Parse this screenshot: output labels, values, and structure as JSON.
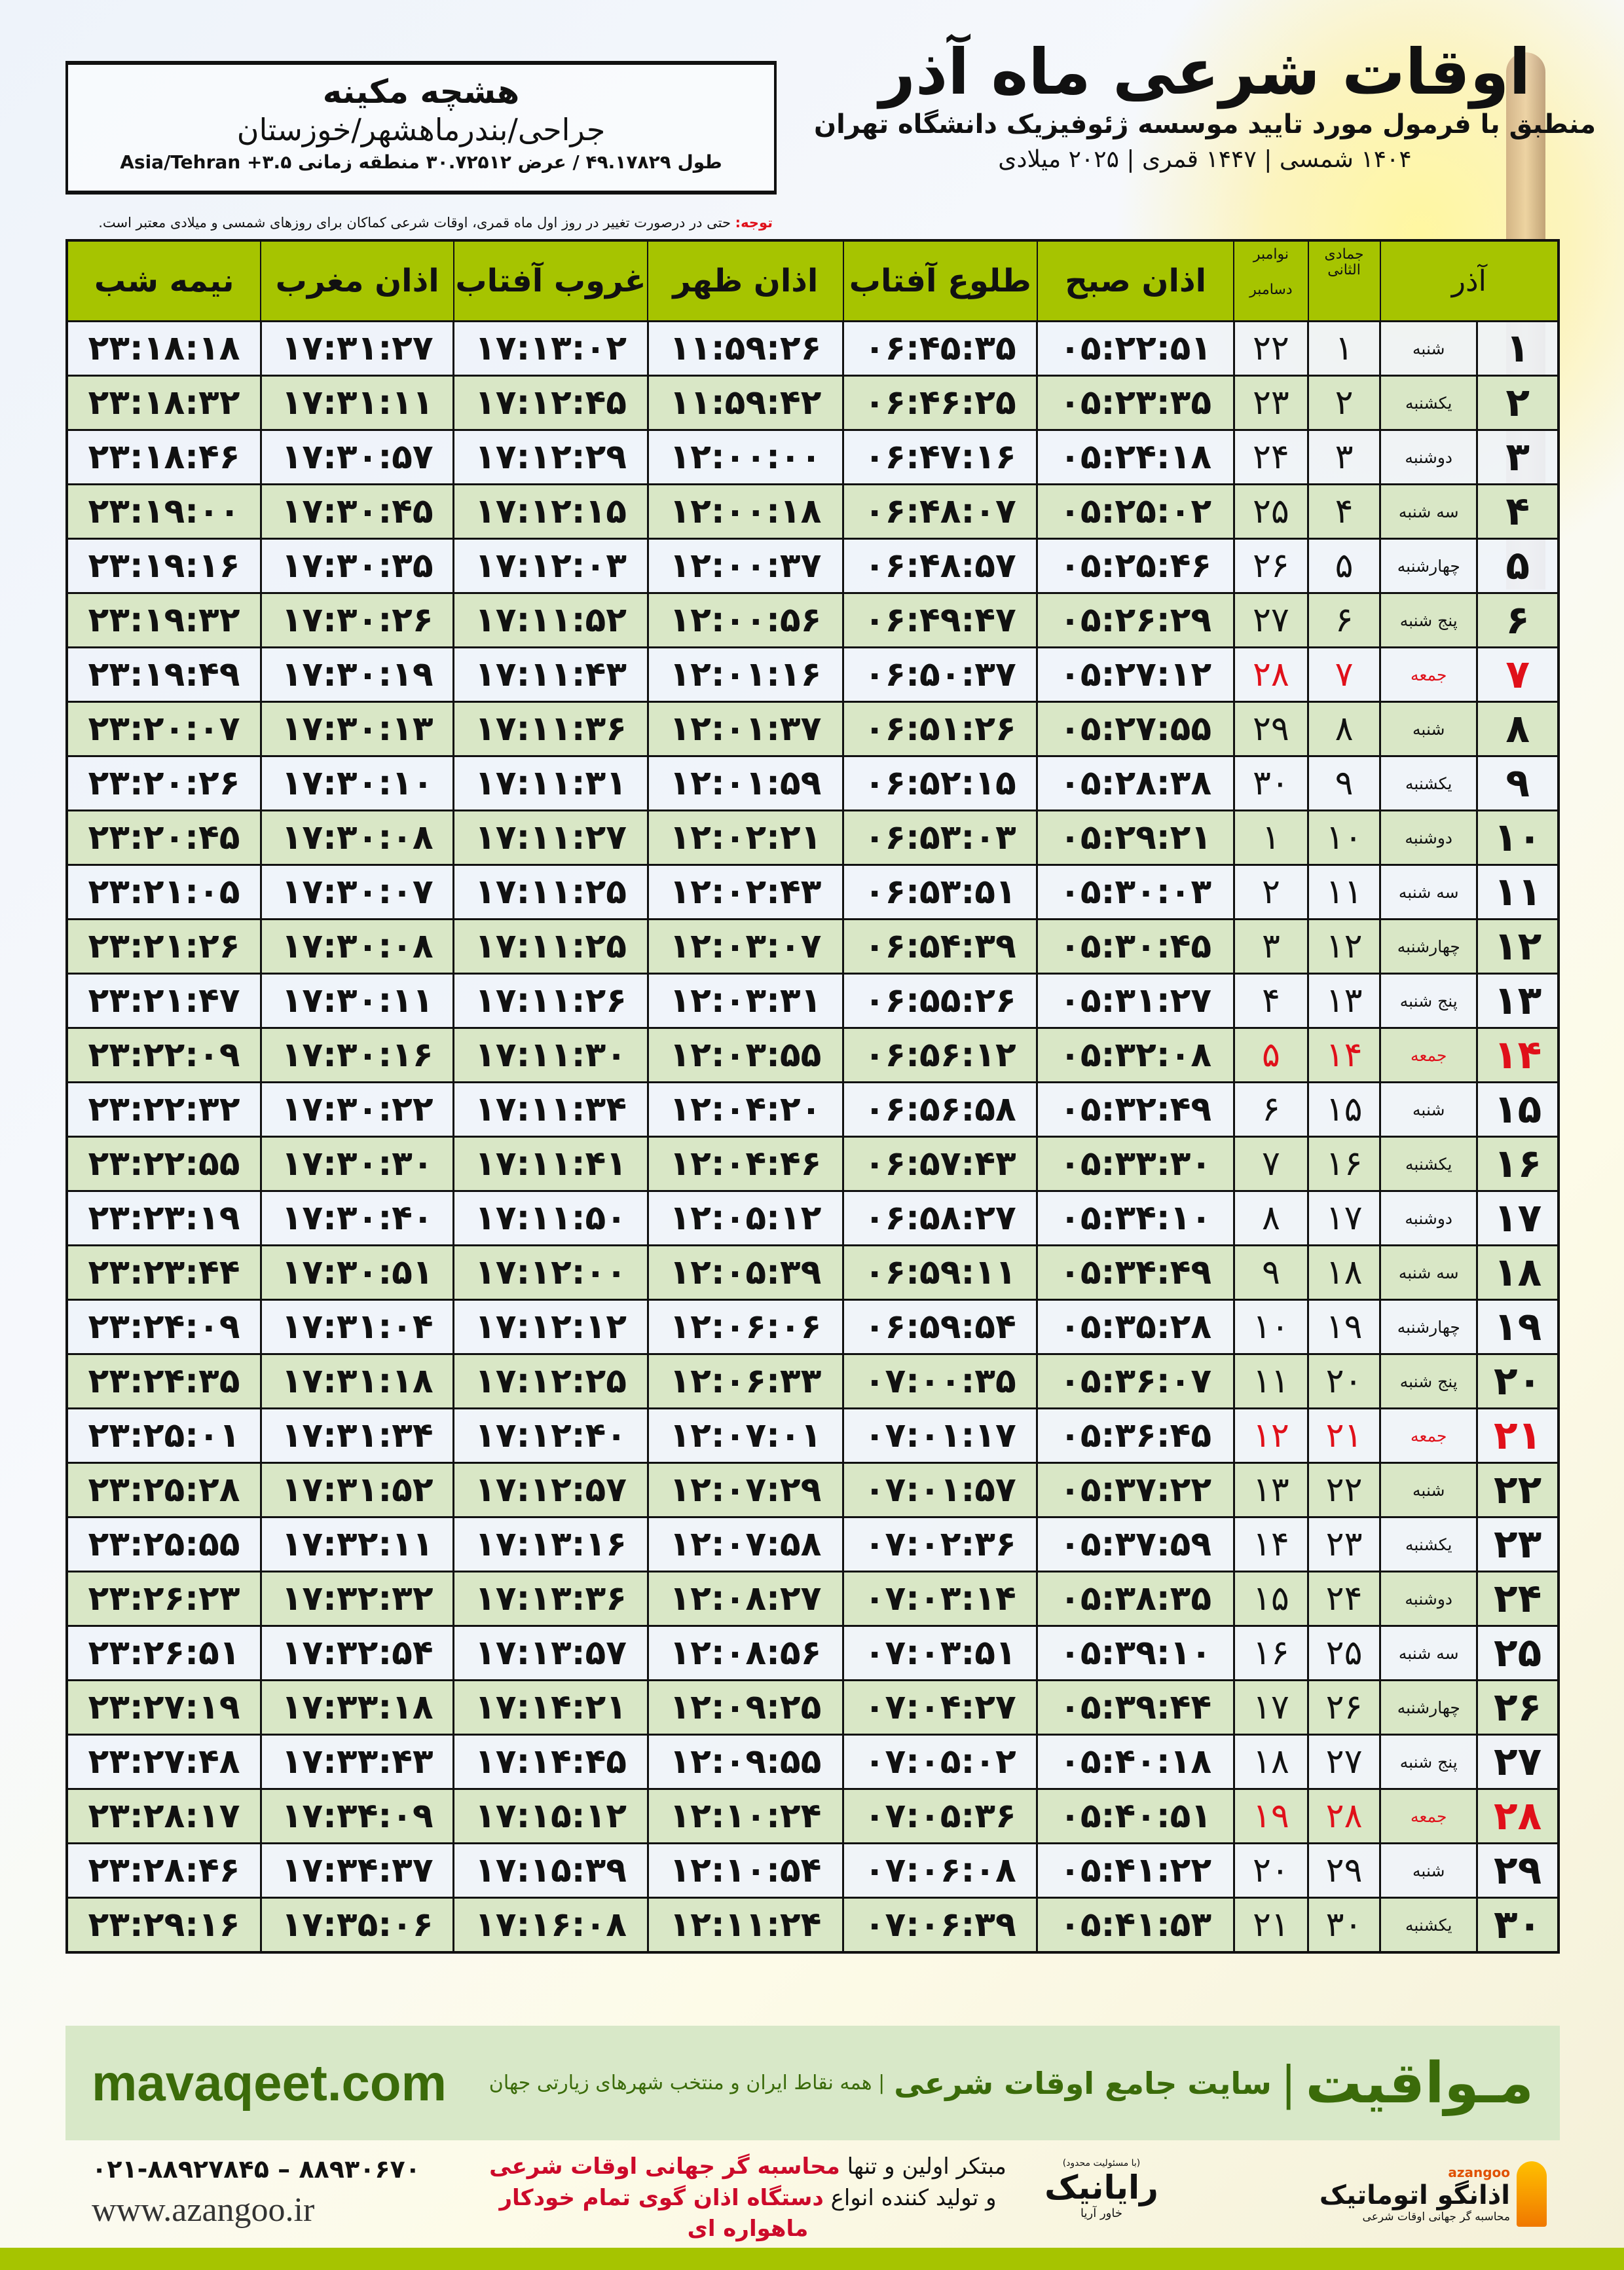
{
  "location": {
    "name": "هشچه مکینه",
    "place": "جراحی/بندرماهشهر/خوزستان",
    "coords": "طول ۴۹.۱۷۸۲۹ / عرض ۳۰.۷۲۵۱۲ منطقه زمانی ۳.۵+ Asia/Tehran"
  },
  "header": {
    "title": "اوقات شرعی ماه آذر",
    "subtitle": "منطبق با فرمول مورد تایید موسسه ژئوفیزیک دانشگاه تهران",
    "years": "۱۴۰۴ شمسی | ۱۴۴۷ قمری | ۲۰۲۵ میلادی"
  },
  "note": {
    "label": "توجه:",
    "text": " حتی در درصورت تغییر در روز اول ماه قمری، اوقات شرعی کماکان برای روزهای شمسی و میلادی معتبر است."
  },
  "colors": {
    "header_green": "#a6c400",
    "even_row": "#d9e7c6",
    "friday_red": "#e0101a",
    "brand_green": "#3b6b0a"
  },
  "table": {
    "columns": {
      "day": "آذر",
      "hijri": "جمادی الثانی",
      "greg_top": "نوامبر",
      "greg_bottom": "دسامبر",
      "fajr": "اذان صبح",
      "sunrise": "طلوع آفتاب",
      "dhuhr": "اذان ظهر",
      "sunset": "غروب آفتاب",
      "maghrib": "اذان مغرب",
      "midnight": "نیمه شب"
    },
    "rows": [
      {
        "day": "۱",
        "weekday": "شنبه",
        "hijri": "۱",
        "greg": "۲۲",
        "fajr": "۰۵:۲۲:۵۱",
        "sunrise": "۰۶:۴۵:۳۵",
        "dhuhr": "۱۱:۵۹:۲۶",
        "sunset": "۱۷:۱۳:۰۲",
        "maghrib": "۱۷:۳۱:۲۷",
        "midnight": "۲۳:۱۸:۱۸",
        "friday": false
      },
      {
        "day": "۲",
        "weekday": "یکشنبه",
        "hijri": "۲",
        "greg": "۲۳",
        "fajr": "۰۵:۲۳:۳۵",
        "sunrise": "۰۶:۴۶:۲۵",
        "dhuhr": "۱۱:۵۹:۴۲",
        "sunset": "۱۷:۱۲:۴۵",
        "maghrib": "۱۷:۳۱:۱۱",
        "midnight": "۲۳:۱۸:۳۲",
        "friday": false
      },
      {
        "day": "۳",
        "weekday": "دوشنبه",
        "hijri": "۳",
        "greg": "۲۴",
        "fajr": "۰۵:۲۴:۱۸",
        "sunrise": "۰۶:۴۷:۱۶",
        "dhuhr": "۱۲:۰۰:۰۰",
        "sunset": "۱۷:۱۲:۲۹",
        "maghrib": "۱۷:۳۰:۵۷",
        "midnight": "۲۳:۱۸:۴۶",
        "friday": false
      },
      {
        "day": "۴",
        "weekday": "سه شنبه",
        "hijri": "۴",
        "greg": "۲۵",
        "fajr": "۰۵:۲۵:۰۲",
        "sunrise": "۰۶:۴۸:۰۷",
        "dhuhr": "۱۲:۰۰:۱۸",
        "sunset": "۱۷:۱۲:۱۵",
        "maghrib": "۱۷:۳۰:۴۵",
        "midnight": "۲۳:۱۹:۰۰",
        "friday": false
      },
      {
        "day": "۵",
        "weekday": "چهارشنبه",
        "hijri": "۵",
        "greg": "۲۶",
        "fajr": "۰۵:۲۵:۴۶",
        "sunrise": "۰۶:۴۸:۵۷",
        "dhuhr": "۱۲:۰۰:۳۷",
        "sunset": "۱۷:۱۲:۰۳",
        "maghrib": "۱۷:۳۰:۳۵",
        "midnight": "۲۳:۱۹:۱۶",
        "friday": false
      },
      {
        "day": "۶",
        "weekday": "پنج شنبه",
        "hijri": "۶",
        "greg": "۲۷",
        "fajr": "۰۵:۲۶:۲۹",
        "sunrise": "۰۶:۴۹:۴۷",
        "dhuhr": "۱۲:۰۰:۵۶",
        "sunset": "۱۷:۱۱:۵۲",
        "maghrib": "۱۷:۳۰:۲۶",
        "midnight": "۲۳:۱۹:۳۲",
        "friday": false
      },
      {
        "day": "۷",
        "weekday": "جمعه",
        "hijri": "۷",
        "greg": "۲۸",
        "fajr": "۰۵:۲۷:۱۲",
        "sunrise": "۰۶:۵۰:۳۷",
        "dhuhr": "۱۲:۰۱:۱۶",
        "sunset": "۱۷:۱۱:۴۳",
        "maghrib": "۱۷:۳۰:۱۹",
        "midnight": "۲۳:۱۹:۴۹",
        "friday": true
      },
      {
        "day": "۸",
        "weekday": "شنبه",
        "hijri": "۸",
        "greg": "۲۹",
        "fajr": "۰۵:۲۷:۵۵",
        "sunrise": "۰۶:۵۱:۲۶",
        "dhuhr": "۱۲:۰۱:۳۷",
        "sunset": "۱۷:۱۱:۳۶",
        "maghrib": "۱۷:۳۰:۱۳",
        "midnight": "۲۳:۲۰:۰۷",
        "friday": false
      },
      {
        "day": "۹",
        "weekday": "یکشنبه",
        "hijri": "۹",
        "greg": "۳۰",
        "fajr": "۰۵:۲۸:۳۸",
        "sunrise": "۰۶:۵۲:۱۵",
        "dhuhr": "۱۲:۰۱:۵۹",
        "sunset": "۱۷:۱۱:۳۱",
        "maghrib": "۱۷:۳۰:۱۰",
        "midnight": "۲۳:۲۰:۲۶",
        "friday": false
      },
      {
        "day": "۱۰",
        "weekday": "دوشنبه",
        "hijri": "۱۰",
        "greg": "۱",
        "fajr": "۰۵:۲۹:۲۱",
        "sunrise": "۰۶:۵۳:۰۳",
        "dhuhr": "۱۲:۰۲:۲۱",
        "sunset": "۱۷:۱۱:۲۷",
        "maghrib": "۱۷:۳۰:۰۸",
        "midnight": "۲۳:۲۰:۴۵",
        "friday": false
      },
      {
        "day": "۱۱",
        "weekday": "سه شنبه",
        "hijri": "۱۱",
        "greg": "۲",
        "fajr": "۰۵:۳۰:۰۳",
        "sunrise": "۰۶:۵۳:۵۱",
        "dhuhr": "۱۲:۰۲:۴۳",
        "sunset": "۱۷:۱۱:۲۵",
        "maghrib": "۱۷:۳۰:۰۷",
        "midnight": "۲۳:۲۱:۰۵",
        "friday": false
      },
      {
        "day": "۱۲",
        "weekday": "چهارشنبه",
        "hijri": "۱۲",
        "greg": "۳",
        "fajr": "۰۵:۳۰:۴۵",
        "sunrise": "۰۶:۵۴:۳۹",
        "dhuhr": "۱۲:۰۳:۰۷",
        "sunset": "۱۷:۱۱:۲۵",
        "maghrib": "۱۷:۳۰:۰۸",
        "midnight": "۲۳:۲۱:۲۶",
        "friday": false
      },
      {
        "day": "۱۳",
        "weekday": "پنج شنبه",
        "hijri": "۱۳",
        "greg": "۴",
        "fajr": "۰۵:۳۱:۲۷",
        "sunrise": "۰۶:۵۵:۲۶",
        "dhuhr": "۱۲:۰۳:۳۱",
        "sunset": "۱۷:۱۱:۲۶",
        "maghrib": "۱۷:۳۰:۱۱",
        "midnight": "۲۳:۲۱:۴۷",
        "friday": false
      },
      {
        "day": "۱۴",
        "weekday": "جمعه",
        "hijri": "۱۴",
        "greg": "۵",
        "fajr": "۰۵:۳۲:۰۸",
        "sunrise": "۰۶:۵۶:۱۲",
        "dhuhr": "۱۲:۰۳:۵۵",
        "sunset": "۱۷:۱۱:۳۰",
        "maghrib": "۱۷:۳۰:۱۶",
        "midnight": "۲۳:۲۲:۰۹",
        "friday": true
      },
      {
        "day": "۱۵",
        "weekday": "شنبه",
        "hijri": "۱۵",
        "greg": "۶",
        "fajr": "۰۵:۳۲:۴۹",
        "sunrise": "۰۶:۵۶:۵۸",
        "dhuhr": "۱۲:۰۴:۲۰",
        "sunset": "۱۷:۱۱:۳۴",
        "maghrib": "۱۷:۳۰:۲۲",
        "midnight": "۲۳:۲۲:۳۲",
        "friday": false
      },
      {
        "day": "۱۶",
        "weekday": "یکشنبه",
        "hijri": "۱۶",
        "greg": "۷",
        "fajr": "۰۵:۳۳:۳۰",
        "sunrise": "۰۶:۵۷:۴۳",
        "dhuhr": "۱۲:۰۴:۴۶",
        "sunset": "۱۷:۱۱:۴۱",
        "maghrib": "۱۷:۳۰:۳۰",
        "midnight": "۲۳:۲۲:۵۵",
        "friday": false
      },
      {
        "day": "۱۷",
        "weekday": "دوشنبه",
        "hijri": "۱۷",
        "greg": "۸",
        "fajr": "۰۵:۳۴:۱۰",
        "sunrise": "۰۶:۵۸:۲۷",
        "dhuhr": "۱۲:۰۵:۱۲",
        "sunset": "۱۷:۱۱:۵۰",
        "maghrib": "۱۷:۳۰:۴۰",
        "midnight": "۲۳:۲۳:۱۹",
        "friday": false
      },
      {
        "day": "۱۸",
        "weekday": "سه شنبه",
        "hijri": "۱۸",
        "greg": "۹",
        "fajr": "۰۵:۳۴:۴۹",
        "sunrise": "۰۶:۵۹:۱۱",
        "dhuhr": "۱۲:۰۵:۳۹",
        "sunset": "۱۷:۱۲:۰۰",
        "maghrib": "۱۷:۳۰:۵۱",
        "midnight": "۲۳:۲۳:۴۴",
        "friday": false
      },
      {
        "day": "۱۹",
        "weekday": "چهارشنبه",
        "hijri": "۱۹",
        "greg": "۱۰",
        "fajr": "۰۵:۳۵:۲۸",
        "sunrise": "۰۶:۵۹:۵۴",
        "dhuhr": "۱۲:۰۶:۰۶",
        "sunset": "۱۷:۱۲:۱۲",
        "maghrib": "۱۷:۳۱:۰۴",
        "midnight": "۲۳:۲۴:۰۹",
        "friday": false
      },
      {
        "day": "۲۰",
        "weekday": "پنج شنبه",
        "hijri": "۲۰",
        "greg": "۱۱",
        "fajr": "۰۵:۳۶:۰۷",
        "sunrise": "۰۷:۰۰:۳۵",
        "dhuhr": "۱۲:۰۶:۳۳",
        "sunset": "۱۷:۱۲:۲۵",
        "maghrib": "۱۷:۳۱:۱۸",
        "midnight": "۲۳:۲۴:۳۵",
        "friday": false
      },
      {
        "day": "۲۱",
        "weekday": "جمعه",
        "hijri": "۲۱",
        "greg": "۱۲",
        "fajr": "۰۵:۳۶:۴۵",
        "sunrise": "۰۷:۰۱:۱۷",
        "dhuhr": "۱۲:۰۷:۰۱",
        "sunset": "۱۷:۱۲:۴۰",
        "maghrib": "۱۷:۳۱:۳۴",
        "midnight": "۲۳:۲۵:۰۱",
        "friday": true
      },
      {
        "day": "۲۲",
        "weekday": "شنبه",
        "hijri": "۲۲",
        "greg": "۱۳",
        "fajr": "۰۵:۳۷:۲۲",
        "sunrise": "۰۷:۰۱:۵۷",
        "dhuhr": "۱۲:۰۷:۲۹",
        "sunset": "۱۷:۱۲:۵۷",
        "maghrib": "۱۷:۳۱:۵۲",
        "midnight": "۲۳:۲۵:۲۸",
        "friday": false
      },
      {
        "day": "۲۳",
        "weekday": "یکشنبه",
        "hijri": "۲۳",
        "greg": "۱۴",
        "fajr": "۰۵:۳۷:۵۹",
        "sunrise": "۰۷:۰۲:۳۶",
        "dhuhr": "۱۲:۰۷:۵۸",
        "sunset": "۱۷:۱۳:۱۶",
        "maghrib": "۱۷:۳۲:۱۱",
        "midnight": "۲۳:۲۵:۵۵",
        "friday": false
      },
      {
        "day": "۲۴",
        "weekday": "دوشنبه",
        "hijri": "۲۴",
        "greg": "۱۵",
        "fajr": "۰۵:۳۸:۳۵",
        "sunrise": "۰۷:۰۳:۱۴",
        "dhuhr": "۱۲:۰۸:۲۷",
        "sunset": "۱۷:۱۳:۳۶",
        "maghrib": "۱۷:۳۲:۳۲",
        "midnight": "۲۳:۲۶:۲۳",
        "friday": false
      },
      {
        "day": "۲۵",
        "weekday": "سه شنبه",
        "hijri": "۲۵",
        "greg": "۱۶",
        "fajr": "۰۵:۳۹:۱۰",
        "sunrise": "۰۷:۰۳:۵۱",
        "dhuhr": "۱۲:۰۸:۵۶",
        "sunset": "۱۷:۱۳:۵۷",
        "maghrib": "۱۷:۳۲:۵۴",
        "midnight": "۲۳:۲۶:۵۱",
        "friday": false
      },
      {
        "day": "۲۶",
        "weekday": "چهارشنبه",
        "hijri": "۲۶",
        "greg": "۱۷",
        "fajr": "۰۵:۳۹:۴۴",
        "sunrise": "۰۷:۰۴:۲۷",
        "dhuhr": "۱۲:۰۹:۲۵",
        "sunset": "۱۷:۱۴:۲۱",
        "maghrib": "۱۷:۳۳:۱۸",
        "midnight": "۲۳:۲۷:۱۹",
        "friday": false
      },
      {
        "day": "۲۷",
        "weekday": "پنج شنبه",
        "hijri": "۲۷",
        "greg": "۱۸",
        "fajr": "۰۵:۴۰:۱۸",
        "sunrise": "۰۷:۰۵:۰۲",
        "dhuhr": "۱۲:۰۹:۵۵",
        "sunset": "۱۷:۱۴:۴۵",
        "maghrib": "۱۷:۳۳:۴۳",
        "midnight": "۲۳:۲۷:۴۸",
        "friday": false
      },
      {
        "day": "۲۸",
        "weekday": "جمعه",
        "hijri": "۲۸",
        "greg": "۱۹",
        "fajr": "۰۵:۴۰:۵۱",
        "sunrise": "۰۷:۰۵:۳۶",
        "dhuhr": "۱۲:۱۰:۲۴",
        "sunset": "۱۷:۱۵:۱۲",
        "maghrib": "۱۷:۳۴:۰۹",
        "midnight": "۲۳:۲۸:۱۷",
        "friday": true
      },
      {
        "day": "۲۹",
        "weekday": "شنبه",
        "hijri": "۲۹",
        "greg": "۲۰",
        "fajr": "۰۵:۴۱:۲۲",
        "sunrise": "۰۷:۰۶:۰۸",
        "dhuhr": "۱۲:۱۰:۵۴",
        "sunset": "۱۷:۱۵:۳۹",
        "maghrib": "۱۷:۳۴:۳۷",
        "midnight": "۲۳:۲۸:۴۶",
        "friday": false
      },
      {
        "day": "۳۰",
        "weekday": "یکشنبه",
        "hijri": "۳۰",
        "greg": "۲۱",
        "fajr": "۰۵:۴۱:۵۳",
        "sunrise": "۰۷:۰۶:۳۹",
        "dhuhr": "۱۲:۱۱:۲۴",
        "sunset": "۱۷:۱۶:۰۸",
        "maghrib": "۱۷:۳۵:۰۶",
        "midnight": "۲۳:۲۹:۱۶",
        "friday": false
      }
    ]
  },
  "promo": {
    "brand": "مـواقیت",
    "separator": "|",
    "slogan": "سایت جامع اوقات شرعی",
    "slogan2": "| همه نقاط ایران و منتخب شهرهای زیارتی جهان",
    "url": "mavaqeet.com"
  },
  "contact": {
    "logo1_name": "اذانگو اتوماتیک",
    "logo1_tagline": "محاسبه گر جهانی اوقات شرعی",
    "logo1_latin": "azangoo",
    "logo2_name": "رایانیک",
    "logo2_sub": "خاور آریا",
    "logo2_note": "(با مسئولیت محدود)",
    "line1_a": "مبتکر اولین و تنها ",
    "line1_b": "محاسبه گر جهانی اوقات شرعی",
    "line2_a": "و تولید کننده انواع ",
    "line2_b": "دستگاه اذان گوی تمام خودکار ماهواره ای",
    "phones": "۰۲۱-۸۸۹۲۷۸۴۵ – ۸۸۹۳۰۶۷۰",
    "website": "www.azangoo.ir"
  }
}
